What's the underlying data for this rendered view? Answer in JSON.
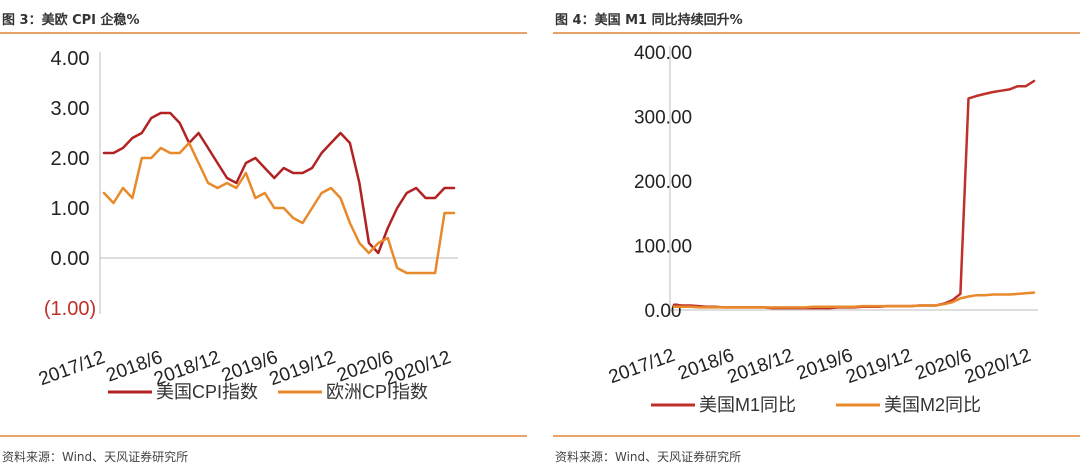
{
  "figures": [
    {
      "title": "图 3：美欧 CPI 企稳%",
      "source": "资料来源：Wind、天风证券研究所",
      "legend": [
        "美国CPI指数",
        "欧洲CPI指数"
      ]
    },
    {
      "title": "图 4：美国 M1 同比持续回升%",
      "source": "资料来源：Wind、天风证券研究所",
      "legend": [
        "美国M1同比",
        "美国M2同比"
      ]
    }
  ],
  "chart_data": [
    {
      "type": "line",
      "title": "美欧 CPI 企稳%",
      "x_tick_labels": [
        "2017/12",
        "2018/6",
        "2018/12",
        "2019/6",
        "2019/12",
        "2020/6",
        "2020/12"
      ],
      "y_tick_labels": [
        "4.00",
        "3.00",
        "2.00",
        "1.00",
        "0.00",
        "(1.00)"
      ],
      "y_tick_values": [
        4,
        3,
        2,
        1,
        0,
        -1
      ],
      "ylim": [
        -1,
        4
      ],
      "x_range": [
        "2017/12",
        "2021/2"
      ],
      "grid": false,
      "legend_position": "bottom",
      "negative_tick_color": "#c0302b",
      "series": [
        {
          "name": "美国CPI指数",
          "color": "#b22222",
          "values": [
            2.1,
            2.1,
            2.2,
            2.4,
            2.5,
            2.8,
            2.9,
            2.9,
            2.7,
            2.3,
            2.5,
            2.2,
            1.9,
            1.6,
            1.5,
            1.9,
            2.0,
            1.8,
            1.6,
            1.8,
            1.7,
            1.7,
            1.8,
            2.1,
            2.3,
            2.5,
            2.3,
            1.5,
            0.3,
            0.1,
            0.6,
            1.0,
            1.3,
            1.4,
            1.2,
            1.2,
            1.4,
            1.4
          ]
        },
        {
          "name": "欧洲CPI指数",
          "color": "#e8892b",
          "values": [
            1.3,
            1.1,
            1.4,
            1.2,
            2.0,
            2.0,
            2.2,
            2.1,
            2.1,
            2.3,
            1.9,
            1.5,
            1.4,
            1.5,
            1.4,
            1.7,
            1.2,
            1.3,
            1.0,
            1.0,
            0.8,
            0.7,
            1.0,
            1.3,
            1.4,
            1.2,
            0.7,
            0.3,
            0.1,
            0.3,
            0.4,
            -0.2,
            -0.3,
            -0.3,
            -0.3,
            -0.3,
            0.9,
            0.9
          ]
        }
      ]
    },
    {
      "type": "line",
      "title": "美国 M1 同比持续回升%",
      "x_tick_labels": [
        "2017/12",
        "2018/6",
        "2018/12",
        "2019/6",
        "2019/12",
        "2020/6",
        "2020/12"
      ],
      "y_tick_labels": [
        "400.00",
        "300.00",
        "200.00",
        "100.00",
        "0.00"
      ],
      "y_tick_values": [
        400,
        300,
        200,
        100,
        0
      ],
      "ylim": [
        0,
        400
      ],
      "x_range": [
        "2017/12",
        "2021/3"
      ],
      "grid": false,
      "legend_position": "bottom",
      "series": [
        {
          "name": "美国M1同比",
          "color": "#c0302b",
          "values": [
            8,
            7,
            7,
            6,
            5,
            5,
            4,
            4,
            4,
            4,
            4,
            4,
            3,
            3,
            3,
            3,
            3,
            3,
            3,
            3,
            4,
            4,
            4,
            5,
            5,
            5,
            6,
            6,
            6,
            6,
            7,
            7,
            7,
            10,
            15,
            25,
            328,
            332,
            335,
            338,
            340,
            342,
            347,
            347,
            355
          ]
        },
        {
          "name": "美国M2同比",
          "color": "#e8892b",
          "values": [
            5,
            5,
            5,
            4,
            4,
            4,
            4,
            4,
            4,
            4,
            4,
            4,
            4,
            4,
            4,
            4,
            4,
            5,
            5,
            5,
            5,
            5,
            5,
            6,
            6,
            6,
            6,
            6,
            6,
            6,
            7,
            7,
            7,
            9,
            12,
            18,
            21,
            23,
            23,
            24,
            24,
            24,
            25,
            26,
            27
          ]
        }
      ]
    }
  ]
}
